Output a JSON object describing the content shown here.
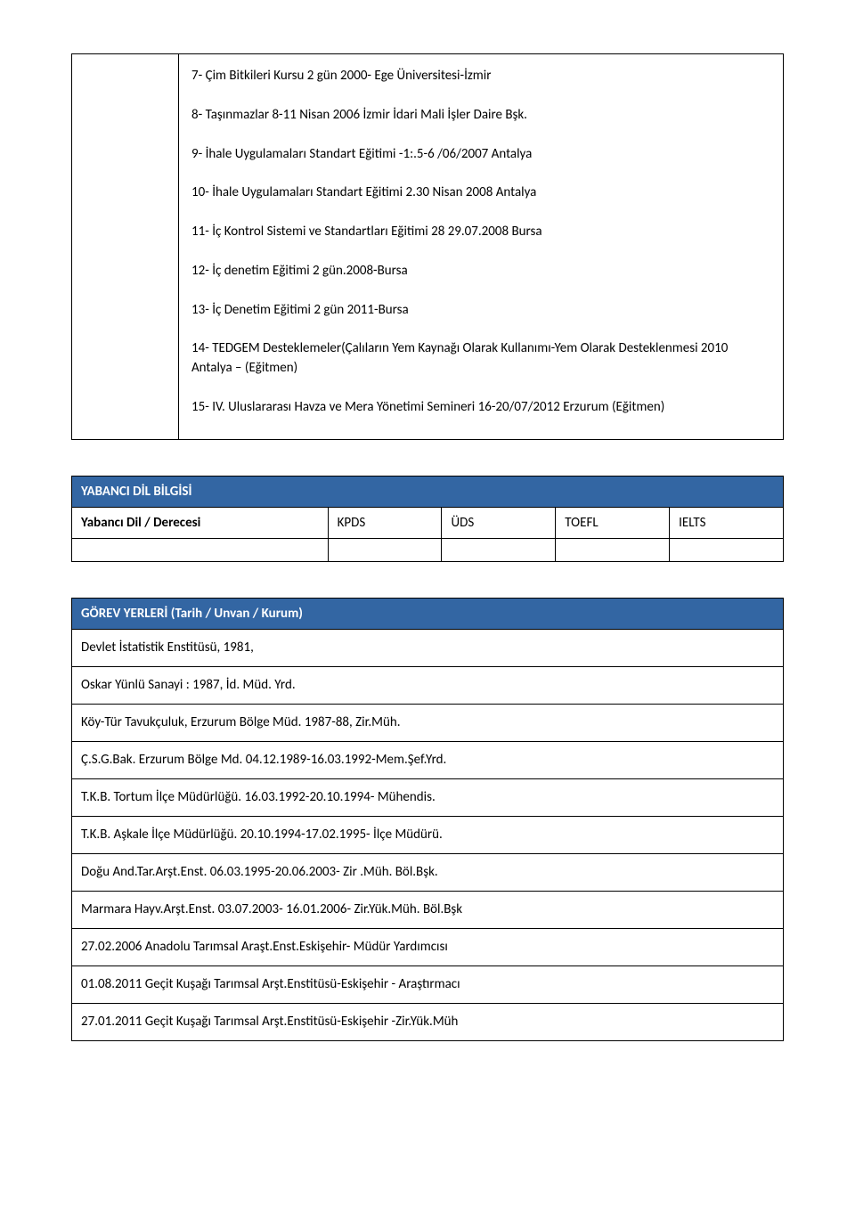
{
  "colors": {
    "header_bg": "#3366a3",
    "header_text": "#ffffff",
    "border": "#000000",
    "body_text": "#000000",
    "page_bg": "#ffffff"
  },
  "training": {
    "items": [
      "7- Çim Bitkileri Kursu 2 gün 2000- Ege Üniversitesi-İzmir",
      "8- Taşınmazlar 8-11 Nisan 2006 İzmir İdari Mali İşler Daire Bşk.",
      "9- İhale Uygulamaları Standart Eğitimi -1:.5-6 /06/2007 Antalya",
      "10- İhale Uygulamaları Standart Eğitimi 2.30 Nisan 2008 Antalya",
      "11- İç Kontrol Sistemi ve Standartları Eğitimi 28 29.07.2008 Bursa",
      "12- İç denetim Eğitimi 2 gün.2008-Bursa",
      "13- İç Denetim Eğitimi 2 gün 2011-Bursa",
      "14- TEDGEM Desteklemeler(Çalıların Yem Kaynağı Olarak Kullanımı-Yem Olarak Desteklenmesi 2010 Antalya – (Eğitmen)",
      "15- IV. Uluslararası Havza ve Mera Yönetimi Semineri 16-20/07/2012 Erzurum (Eğitmen)"
    ]
  },
  "lang": {
    "section_title": "YABANCI DİL BİLGİSİ",
    "row_label": "Yabancı Dil / Derecesi",
    "columns": [
      "KPDS",
      "ÜDS",
      "TOEFL",
      "IELTS"
    ]
  },
  "positions": {
    "section_title": "GÖREV YERLERİ (Tarih / Unvan / Kurum)",
    "rows": [
      "Devlet İstatistik Enstitüsü, 1981,",
      "Oskar Yünlü Sanayi : 1987, İd. Müd. Yrd.",
      "Köy-Tür Tavukçuluk, Erzurum Bölge Müd. 1987-88, Zir.Müh.",
      "Ç.S.G.Bak. Erzurum Bölge Md. 04.12.1989-16.03.1992-Mem.Şef.Yrd.",
      "T.K.B. Tortum İlçe Müdürlüğü. 16.03.1992-20.10.1994- Mühendis.",
      "T.K.B. Aşkale İlçe Müdürlüğü. 20.10.1994-17.02.1995- İlçe Müdürü.",
      "Doğu And.Tar.Arşt.Enst. 06.03.1995-20.06.2003- Zir .Müh. Böl.Bşk.",
      "Marmara Hayv.Arşt.Enst. 03.07.2003- 16.01.2006- Zir.Yük.Müh. Böl.Bşk",
      "27.02.2006 Anadolu Tarımsal Araşt.Enst.Eskişehir-  Müdür Yardımcısı",
      "01.08.2011 Geçit Kuşağı Tarımsal Arşt.Enstitüsü-Eskişehir - Araştırmacı",
      "27.01.2011 Geçit Kuşağı Tarımsal Arşt.Enstitüsü-Eskişehir -Zir.Yük.Müh"
    ]
  }
}
